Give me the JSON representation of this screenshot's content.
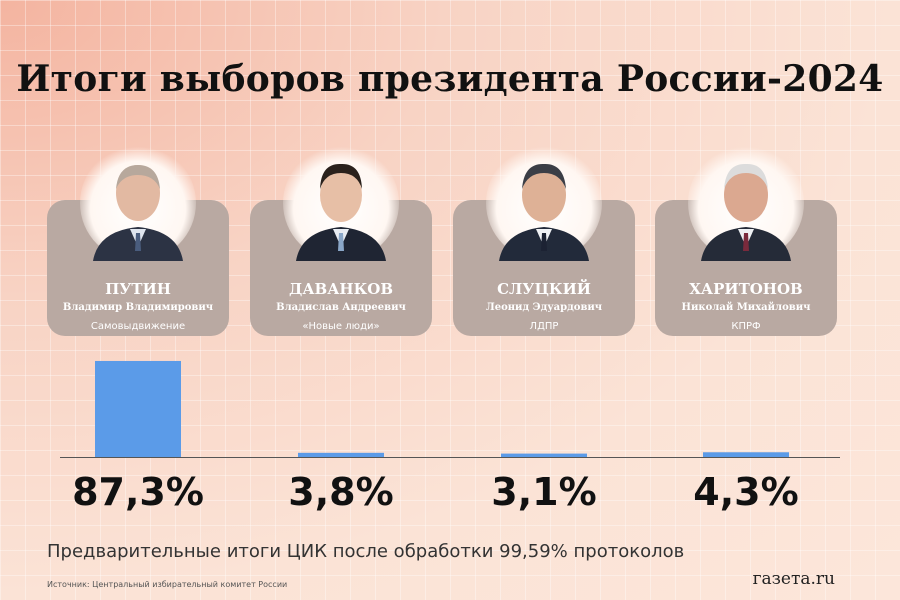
{
  "title": "Итоги выборов президента России-2024",
  "candidates": [
    {
      "surname": "ПУТИН",
      "full_name": "Владимир Владимирович",
      "party": "Самовыдвижение",
      "percent_label": "87,3%"
    },
    {
      "surname": "ДАВАНКОВ",
      "full_name": "Владислав Андреевич",
      "party": "«Новые люди»",
      "percent_label": "3,8%"
    },
    {
      "surname": "СЛУЦКИЙ",
      "full_name": "Леонид Эдуардович",
      "party": "ЛДПР",
      "percent_label": "3,1%"
    },
    {
      "surname": "ХАРИТОНОВ",
      "full_name": "Николай Михайлович",
      "party": "КПРФ",
      "percent_label": "4,3%"
    }
  ],
  "chart_data": {
    "type": "bar",
    "categories": [
      "ПУТИН",
      "ДАВАНКОВ",
      "СЛУЦКИЙ",
      "ХАРИТОНОВ"
    ],
    "values": [
      87.3,
      3.8,
      3.1,
      4.3
    ],
    "ylim": [
      0,
      100
    ],
    "grid": true,
    "legend": "none",
    "bar_color": "#5b9be8"
  },
  "subtitle": "Предварительные итоги ЦИК после обработки 99,59% протоколов",
  "source": "Источник: Центральный избирательный комитет России",
  "logo": "газета.ru",
  "colors": {
    "card": "#b9a9a2",
    "bar": "#5b9be8",
    "baseline": "#555555"
  }
}
